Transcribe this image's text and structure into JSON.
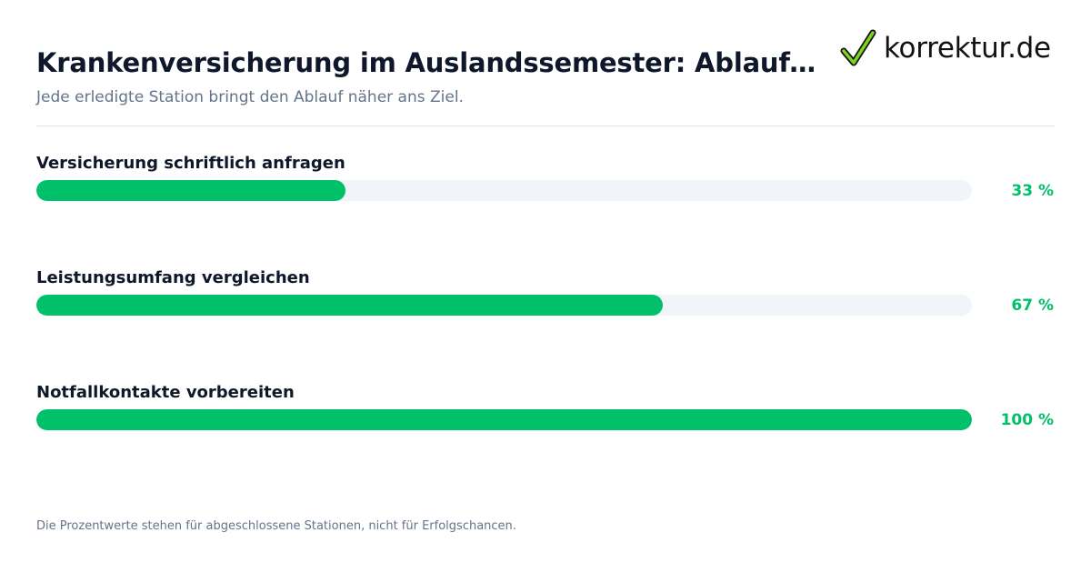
{
  "header": {
    "title": "Krankenversicherung im Auslandssemester: Ablauf-Fortsch…",
    "subtitle": "Jede erledigte Station bringt den Ablauf näher ans Ziel."
  },
  "logo": {
    "text": "korrektur.de",
    "icon": "checkmark-icon",
    "check_color": "#7ed321"
  },
  "colors": {
    "accent": "#00c16a",
    "track": "#f1f5f9"
  },
  "chart_data": {
    "type": "bar",
    "orientation": "horizontal",
    "title": "Krankenversicherung im Auslandssemester: Ablauf-Fortsch…",
    "subtitle": "Jede erledigte Station bringt den Ablauf näher ans Ziel.",
    "categories": [
      "Versicherung schriftlich anfragen",
      "Leistungsumfang vergleichen",
      "Notfallkontakte vorbereiten"
    ],
    "values": [
      33,
      67,
      100
    ],
    "value_labels": [
      "33 %",
      "67 %",
      "100 %"
    ],
    "xlim": [
      0,
      100
    ],
    "grid": false
  },
  "footer": {
    "note": "Die Prozentwerte stehen für abgeschlossene Stationen, nicht für Erfolgschancen."
  }
}
